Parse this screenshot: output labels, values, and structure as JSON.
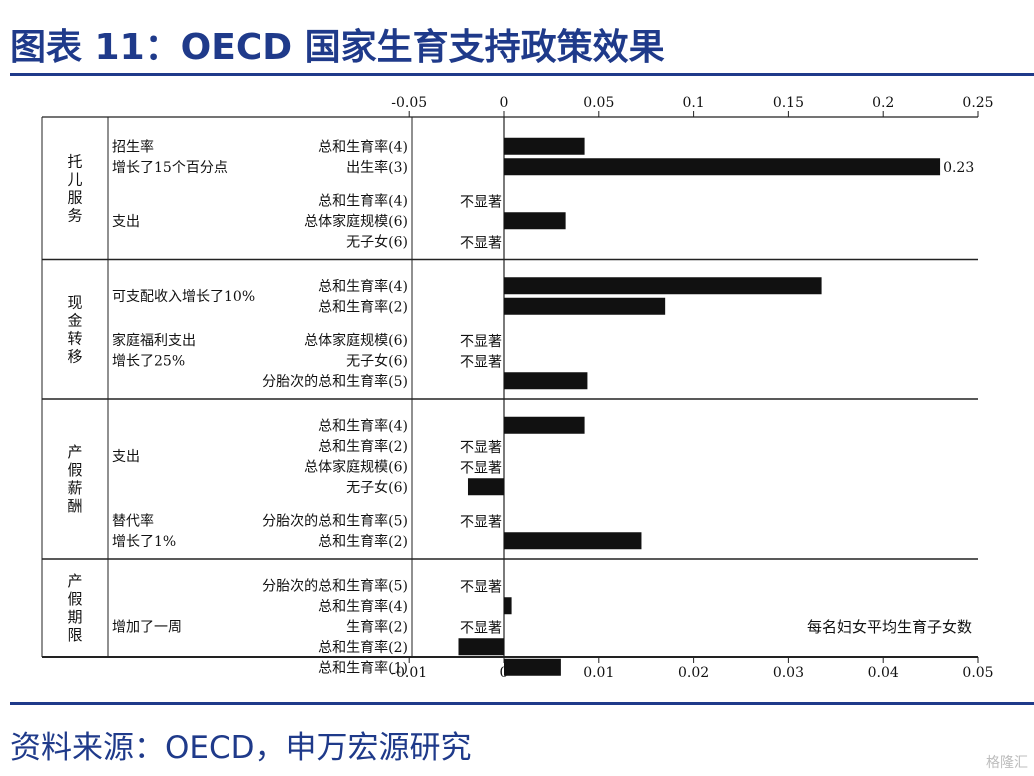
{
  "title": "图表 11：OECD 国家生育支持政策效果",
  "source": "资料来源：OECD，申万宏源研究",
  "watermark": "格隆汇",
  "chart_data": {
    "type": "bar",
    "orientation": "horizontal",
    "top_axis": {
      "ticks": [
        "-0.05",
        "0",
        "0.05",
        "0.1",
        "0.15",
        "0.2",
        "0.25"
      ],
      "range": [
        -0.05,
        0.25
      ]
    },
    "bottom_axis": {
      "ticks": [
        "-0.01",
        "0",
        "0.01",
        "0.02",
        "0.03",
        "0.04",
        "0.05"
      ],
      "range": [
        -0.01,
        0.05
      ]
    },
    "annotation": "每名妇女平均生育子女数",
    "not_significant_label": "不显著",
    "groups": [
      {
        "name": "托儿服务",
        "subgroups": [
          {
            "label_lines": [
              "招生率",
              "增长了15个百分点"
            ],
            "rows": [
              {
                "measure": "总和生育率(4)",
                "value": 0.0085,
                "axis": "bottom"
              },
              {
                "measure": "出生率(3)",
                "value": 0.23,
                "axis": "top",
                "value_label": "0.23"
              }
            ]
          },
          {
            "label_lines": [
              "支出"
            ],
            "rows": [
              {
                "measure": "总和生育率(4)",
                "value": null,
                "not_significant": true
              },
              {
                "measure": "总体家庭规模(6)",
                "value": 0.0065,
                "axis": "bottom"
              },
              {
                "measure": "无子女(6)",
                "value": null,
                "not_significant": true
              }
            ]
          }
        ]
      },
      {
        "name": "现金转移",
        "subgroups": [
          {
            "label_lines": [
              "可支配收入增长了10%"
            ],
            "rows": [
              {
                "measure": "总和生育率(4)",
                "value": 0.0335,
                "axis": "bottom"
              },
              {
                "measure": "总和生育率(2)",
                "value": 0.017,
                "axis": "bottom"
              }
            ]
          },
          {
            "label_lines": [
              "家庭福利支出",
              "增长了25%"
            ],
            "rows": [
              {
                "measure": "总体家庭规模(6)",
                "value": null,
                "not_significant": true
              },
              {
                "measure": "无子女(6)",
                "value": null,
                "not_significant": true
              },
              {
                "measure": "分胎次的总和生育率(5)",
                "value": 0.0088,
                "axis": "bottom"
              }
            ]
          }
        ]
      },
      {
        "name": "产假薪酬",
        "subgroups": [
          {
            "label_lines": [
              "支出"
            ],
            "rows": [
              {
                "measure": "总和生育率(4)",
                "value": 0.0085,
                "axis": "bottom"
              },
              {
                "measure": "总和生育率(2)",
                "value": null,
                "not_significant": true
              },
              {
                "measure": "总体家庭规模(6)",
                "value": null,
                "not_significant": true
              },
              {
                "measure": "无子女(6)",
                "value": -0.0038,
                "axis": "bottom"
              }
            ]
          },
          {
            "label_lines": [
              "替代率",
              "增长了1%"
            ],
            "rows": [
              {
                "measure": "分胎次的总和生育率(5)",
                "value": null,
                "not_significant": true
              },
              {
                "measure": "总和生育率(2)",
                "value": 0.0145,
                "axis": "bottom"
              }
            ]
          }
        ]
      },
      {
        "name": "产假期限",
        "subgroups": [
          {
            "label_lines": [
              "增加了一周"
            ],
            "rows": [
              {
                "measure": "分胎次的总和生育率(5)",
                "value": null,
                "not_significant": true
              },
              {
                "measure": "总和生育率(4)",
                "value": 0.0008,
                "axis": "bottom"
              },
              {
                "measure": "生育率(2)",
                "value": null,
                "not_significant": true
              },
              {
                "measure": "总和生育率(2)",
                "value": -0.0048,
                "axis": "bottom"
              },
              {
                "measure": "总和生育率(1)",
                "value": 0.006,
                "axis": "bottom"
              }
            ]
          }
        ]
      }
    ]
  }
}
